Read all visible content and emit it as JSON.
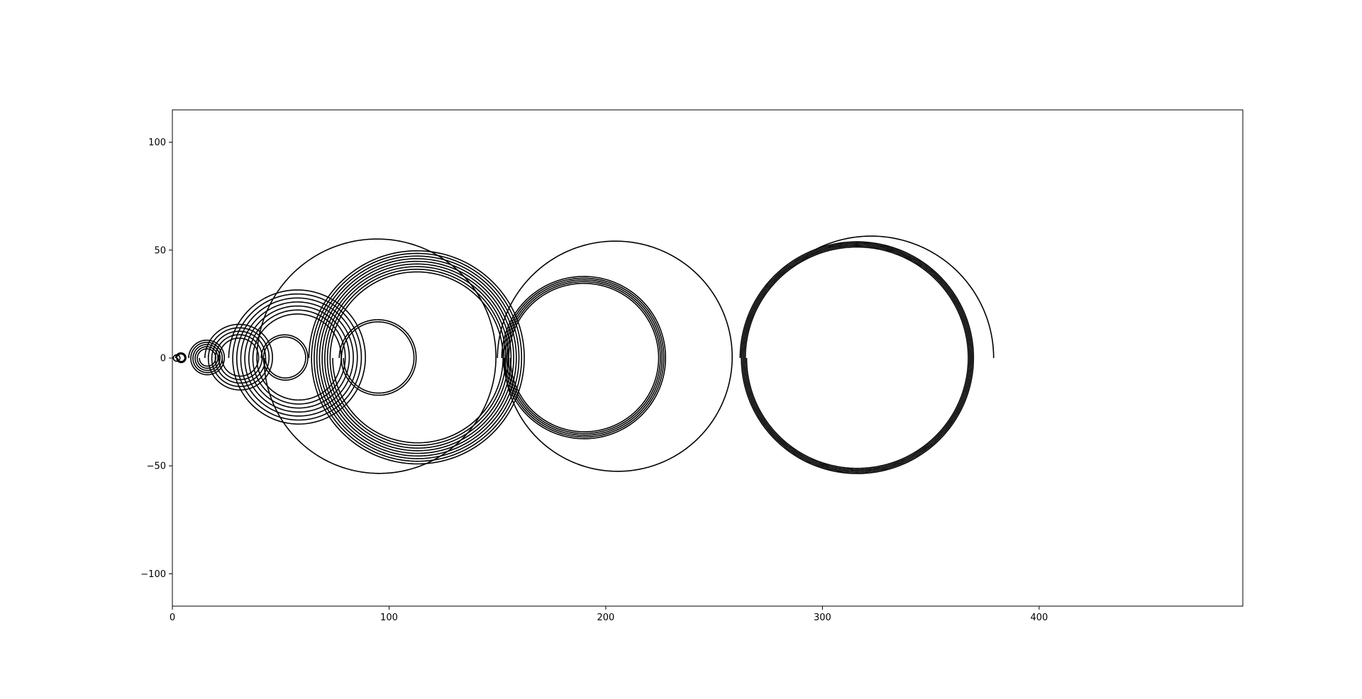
{
  "chart_data": {
    "type": "line",
    "title": "",
    "xlabel": "",
    "ylabel": "",
    "xlim": [
      0,
      494
    ],
    "ylim": [
      -115,
      115
    ],
    "grid": false,
    "legend": "none",
    "line_color": "#000000",
    "x_ticks": [
      0,
      100,
      200,
      300,
      400
    ],
    "y_ticks": [
      100,
      50,
      0,
      -50,
      -100
    ],
    "x_tick_labels": [
      "0",
      "100",
      "200",
      "300",
      "400"
    ],
    "y_tick_labels": [
      "100",
      "50",
      "0",
      "−50",
      "−100"
    ],
    "series": [
      {
        "start": [
          0,
          0
        ],
        "end": [
          379,
          0
        ],
        "rings": [
          {
            "center": [
              2,
              0
            ],
            "radius_outer": 1.5,
            "radius_inner": 1.5,
            "loops": 1
          },
          {
            "center": [
              4,
              0
            ],
            "radius_outer": 2.5,
            "radius_inner": 1.5,
            "loops": 2
          },
          {
            "center": [
              16,
              0
            ],
            "radius_outer": 8.5,
            "radius_inner": 3.5,
            "loops": 5
          },
          {
            "center": [
              31,
              0
            ],
            "radius_outer": 16,
            "radius_inner": 8,
            "loops": 5
          },
          {
            "center": [
              52,
              0
            ],
            "radius_outer": 11,
            "radius_inner": 9,
            "loops": 2
          },
          {
            "center": [
              58,
              0
            ],
            "radius_outer": 32,
            "radius_inner": 19,
            "loops": 7
          },
          {
            "center": [
              95,
              0
            ],
            "radius_outer": 18,
            "radius_inner": 16,
            "loops": 2
          },
          {
            "center": [
              113,
              0
            ],
            "radius_outer": 50,
            "radius_inner": 39,
            "loops": 9
          },
          {
            "center": [
              190,
              0
            ],
            "radius_outer": 38,
            "radius_inner": 34,
            "loops": 5
          },
          {
            "center": [
              316,
              0
            ],
            "radius_outer": 54,
            "radius_inner": 51,
            "loops": 5
          }
        ],
        "big_arcs": [
          {
            "center": [
              95,
              0
            ],
            "radius": 56
          },
          {
            "center": [
              205,
              0
            ],
            "radius": 55
          }
        ]
      }
    ]
  }
}
